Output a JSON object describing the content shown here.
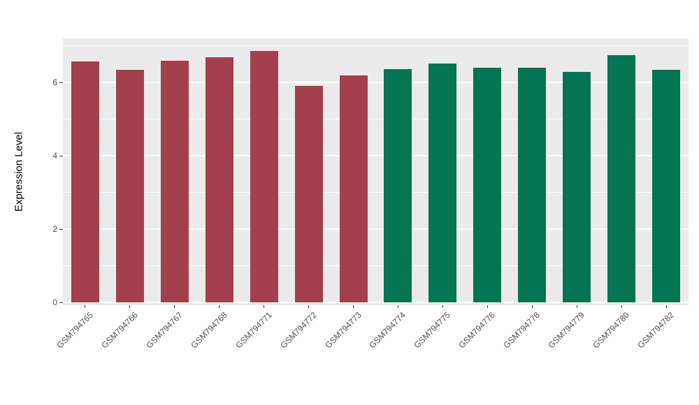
{
  "chart_data": {
    "type": "bar",
    "title": "",
    "ylabel": "Expression Level",
    "xlabel": "",
    "categories": [
      "GSM794765",
      "GSM794766",
      "GSM794767",
      "GSM794768",
      "GSM794771",
      "GSM794772",
      "GSM794773",
      "GSM794774",
      "GSM794775",
      "GSM794776",
      "GSM794778",
      "GSM794779",
      "GSM794780",
      "GSM794782"
    ],
    "values": [
      6.57,
      6.34,
      6.59,
      6.69,
      6.86,
      5.9,
      6.19,
      6.36,
      6.51,
      6.4,
      6.4,
      6.28,
      6.74,
      6.34
    ],
    "colors": [
      "#A2404D",
      "#A2404D",
      "#A2404D",
      "#A2404D",
      "#A2404D",
      "#A2404D",
      "#A2404D",
      "#047451",
      "#047451",
      "#047451",
      "#047451",
      "#047451",
      "#047451",
      "#047451"
    ],
    "ylim": [
      0,
      7.2
    ],
    "yticks": [
      0,
      2,
      4,
      6
    ],
    "minor_gridlines": [
      1,
      3,
      5,
      7
    ],
    "grid": true,
    "legend": "none",
    "panel_bg": "#EBEBEB",
    "grid_color": "#FFFFFF",
    "tick_mark_color": "#333333",
    "tick_label_color": "#4D4D4D",
    "axis_title_color": "#000000"
  }
}
